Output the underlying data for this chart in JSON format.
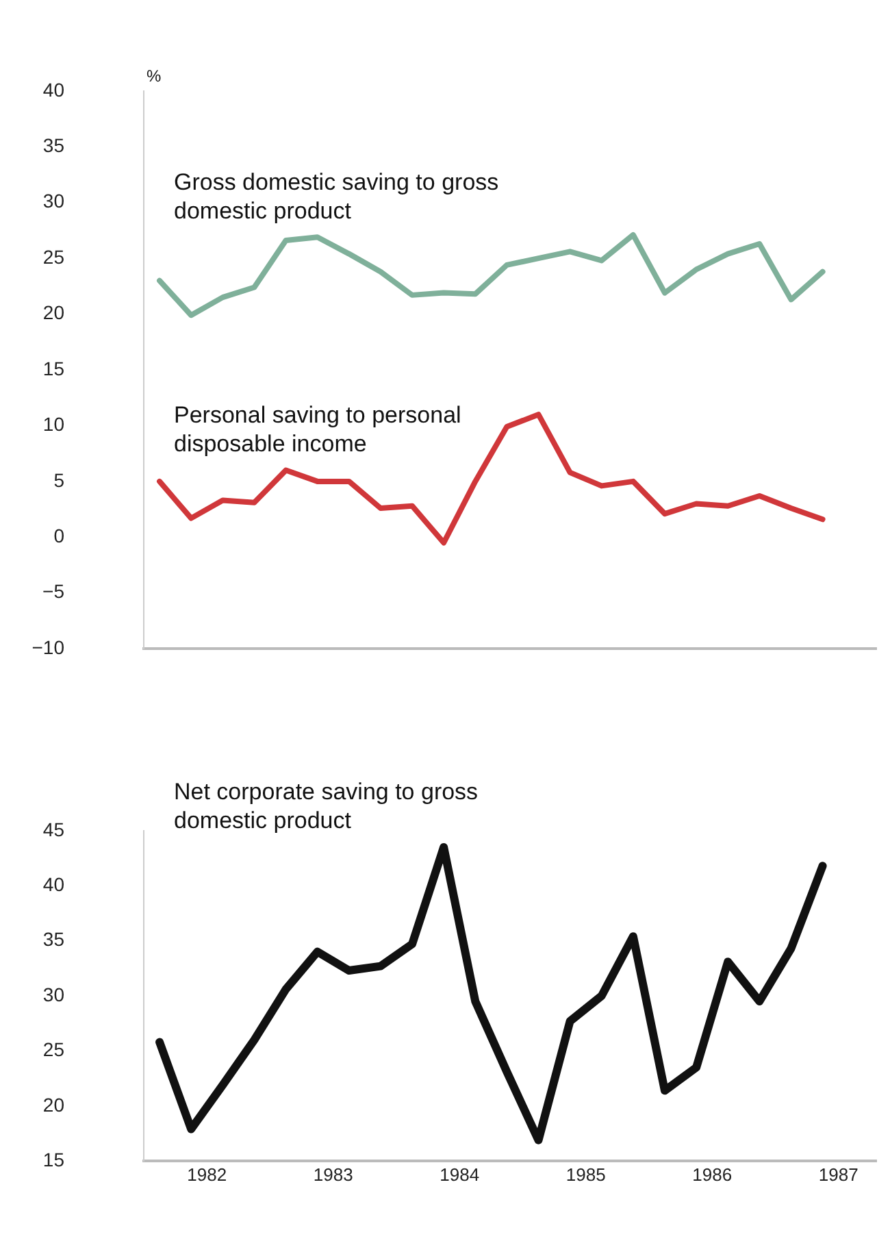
{
  "chart_data": [
    {
      "type": "line",
      "ylabel": "%",
      "x": [
        1981.625,
        1981.875,
        1982.125,
        1982.375,
        1982.625,
        1982.875,
        1983.125,
        1983.375,
        1983.625,
        1983.875,
        1984.125,
        1984.375,
        1984.625,
        1984.875,
        1985.125,
        1985.375,
        1985.625,
        1985.875,
        1986.125,
        1986.375,
        1986.625,
        1986.875
      ],
      "xlim": [
        1981.5,
        1987.3
      ],
      "ylim": [
        -10,
        40
      ],
      "yticks": [
        -10,
        -5,
        0,
        5,
        10,
        15,
        20,
        25,
        30,
        35,
        40
      ],
      "tick_labels": "y",
      "grid": false,
      "legend": false,
      "marker": "none",
      "line_style": "solid",
      "series": [
        {
          "name": "Gross domestic saving to gross domestic product",
          "color": "#7fb09a",
          "values": [
            23.0,
            19.9,
            21.5,
            22.4,
            26.6,
            26.9,
            25.4,
            23.8,
            21.7,
            21.9,
            21.8,
            24.4,
            25.0,
            25.6,
            24.8,
            27.1,
            21.9,
            24.0,
            25.4,
            26.3,
            21.3,
            23.8
          ]
        },
        {
          "name": "Personal saving to personal disposable income",
          "color": "#d0373a",
          "values": [
            5.0,
            1.7,
            3.3,
            3.1,
            6.0,
            5.0,
            5.0,
            2.6,
            2.8,
            -0.5,
            5.0,
            9.9,
            11.0,
            5.8,
            4.6,
            5.0,
            2.1,
            3.0,
            2.8,
            3.7,
            2.6,
            1.6
          ]
        }
      ]
    },
    {
      "type": "line",
      "x": [
        1981.625,
        1981.875,
        1982.125,
        1982.375,
        1982.625,
        1982.875,
        1983.125,
        1983.375,
        1983.625,
        1983.875,
        1984.125,
        1984.375,
        1984.625,
        1984.875,
        1985.125,
        1985.375,
        1985.625,
        1985.875,
        1986.125,
        1986.375,
        1986.625,
        1986.875
      ],
      "xlim": [
        1981.5,
        1987.3
      ],
      "xticks": [
        1982,
        1983,
        1984,
        1985,
        1986,
        1987
      ],
      "ylim": [
        15,
        45
      ],
      "yticks": [
        15,
        20,
        25,
        30,
        35,
        40,
        45
      ],
      "grid": false,
      "legend": false,
      "marker": "none",
      "line_style": "solid",
      "series": [
        {
          "name": "Net corporate saving to gross domestic product",
          "color": "#111111",
          "values": [
            25.8,
            17.9,
            21.9,
            26.0,
            30.6,
            34.0,
            32.3,
            32.7,
            34.7,
            43.5,
            29.5,
            23.1,
            16.9,
            27.7,
            30.0,
            35.4,
            21.4,
            23.5,
            33.1,
            29.5,
            34.3,
            41.8
          ]
        }
      ]
    }
  ]
}
